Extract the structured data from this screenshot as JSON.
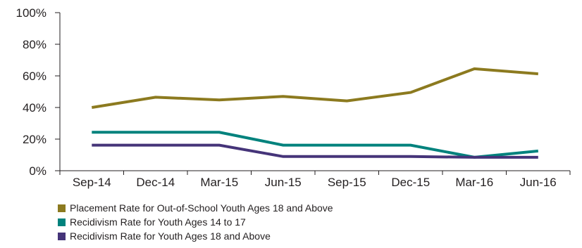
{
  "chart_data": {
    "type": "line",
    "categories": [
      "Sep-14",
      "Dec-14",
      "Mar-15",
      "Jun-15",
      "Sep-15",
      "Dec-15",
      "Mar-16",
      "Jun-16"
    ],
    "y_ticks": [
      "0%",
      "20%",
      "40%",
      "60%",
      "80%",
      "100%"
    ],
    "ylim": [
      0,
      100
    ],
    "grid": false,
    "legend_position": "bottom-left",
    "series": [
      {
        "name": "Placement Rate for Out-of-School Youth Ages 18 and Above",
        "color": "#8c7a1f",
        "values": [
          40,
          46.5,
          44.8,
          47,
          44.2,
          49.5,
          64.5,
          61.3
        ]
      },
      {
        "name": "Recidivism Rate for Youth Ages 14 to 17",
        "color": "#00827d",
        "values": [
          24.3,
          24.3,
          24.3,
          16.2,
          16.2,
          16.2,
          8.5,
          12.5
        ]
      },
      {
        "name": "Recidivism Rate for Youth Ages 18 and Above",
        "color": "#453479",
        "values": [
          16.2,
          16.2,
          16.2,
          9,
          9,
          9,
          8.5,
          8.5
        ]
      }
    ]
  }
}
